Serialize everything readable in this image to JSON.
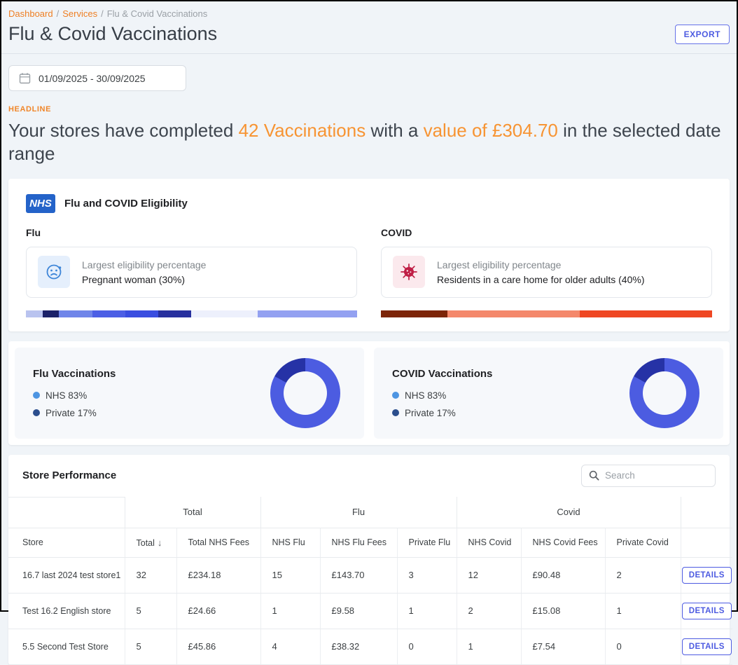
{
  "breadcrumb": {
    "separator": "/",
    "items": [
      {
        "label": "Dashboard"
      },
      {
        "label": "Services"
      },
      {
        "label": "Flu & Covid Vaccinations"
      }
    ]
  },
  "header": {
    "title": "Flu & Covid Vaccinations",
    "export_label": "EXPORT"
  },
  "date_range": {
    "value": "01/09/2025 - 30/09/2025",
    "icon": "calendar-icon"
  },
  "headline": {
    "label": "HEADLINE",
    "part1": "Your stores have completed ",
    "highlight1": "42 Vaccinations",
    "part2": " with a ",
    "highlight2": "value of £304.70",
    "part3": " in the selected date range"
  },
  "colors": {
    "accent_orange": "#f0862a",
    "highlight_orange": "#f79433",
    "accent_blue": "#4d5be1",
    "nhs_blue": "#2463c9",
    "page_background": "#f0f4f8"
  },
  "eligibility": {
    "logo_text": "NHS",
    "title": "Flu and COVID Eligibility",
    "flu": {
      "label": "Flu",
      "icon": "sick-face-icon",
      "stat_label": "Largest eligibility percentage",
      "stat_value": "Pregnant woman (30%)",
      "bar_segments": [
        {
          "color": "#b9c3ef",
          "pct": 5
        },
        {
          "color": "#1b2169",
          "pct": 5
        },
        {
          "color": "#6f85e9",
          "pct": 10
        },
        {
          "color": "#4c5fe5",
          "pct": 10
        },
        {
          "color": "#3a4ee0",
          "pct": 10
        },
        {
          "color": "#27309e",
          "pct": 10
        },
        {
          "color": "#edf0fc",
          "pct": 20
        },
        {
          "color": "#93a1f1",
          "pct": 30
        }
      ]
    },
    "covid": {
      "label": "COVID",
      "icon": "virus-icon",
      "stat_label": "Largest eligibility percentage",
      "stat_value": "Residents in a care home for older adults (40%)",
      "bar_segments": [
        {
          "color": "#7c2508",
          "pct": 20
        },
        {
          "color": "#f4886b",
          "pct": 40
        },
        {
          "color": "#ef4723",
          "pct": 40
        }
      ]
    }
  },
  "vaccination_charts": [
    {
      "title": "Flu Vaccinations",
      "legend": [
        {
          "label": "NHS 83%",
          "color": "#4d95e2"
        },
        {
          "label": "Private 17%",
          "color": "#2b4e8d"
        }
      ],
      "chart_data": {
        "type": "pie",
        "categories": [
          "NHS",
          "Private"
        ],
        "values": [
          83,
          17
        ],
        "colors": [
          "#4c5ce1",
          "#2632a6"
        ],
        "title": "Flu Vaccinations"
      }
    },
    {
      "title": "COVID Vaccinations",
      "legend": [
        {
          "label": "NHS 83%",
          "color": "#4d95e2"
        },
        {
          "label": "Private 17%",
          "color": "#2b4e8d"
        }
      ],
      "chart_data": {
        "type": "pie",
        "categories": [
          "NHS",
          "Private"
        ],
        "values": [
          83,
          17
        ],
        "colors": [
          "#4c5ce1",
          "#2632a6"
        ],
        "title": "COVID Vaccinations"
      }
    }
  ],
  "store_performance": {
    "title": "Store Performance",
    "search_placeholder": "Search",
    "search_icon": "search-icon",
    "table": {
      "group_headers": [
        {
          "label": "Total"
        },
        {
          "label": "Flu"
        },
        {
          "label": "Covid"
        }
      ],
      "columns": [
        "Store",
        "Total",
        "Total NHS Fees",
        "NHS Flu",
        "NHS Flu Fees",
        "Private Flu",
        "NHS Covid",
        "NHS Covid Fees",
        "Private Covid"
      ],
      "sort_column": "Total",
      "sort_indicator": "↓",
      "rows": [
        {
          "cells": [
            "16.7 last 2024 test store1",
            "32",
            "£234.18",
            "15",
            "£143.70",
            "3",
            "12",
            "£90.48",
            "2"
          ],
          "action": "DETAILS"
        },
        {
          "cells": [
            "Test 16.2 English store",
            "5",
            "£24.66",
            "1",
            "£9.58",
            "1",
            "2",
            "£15.08",
            "1"
          ],
          "action": "DETAILS"
        },
        {
          "cells": [
            "5.5 Second Test Store",
            "5",
            "£45.86",
            "4",
            "£38.32",
            "0",
            "1",
            "£7.54",
            "0"
          ],
          "action": "DETAILS"
        }
      ]
    }
  }
}
